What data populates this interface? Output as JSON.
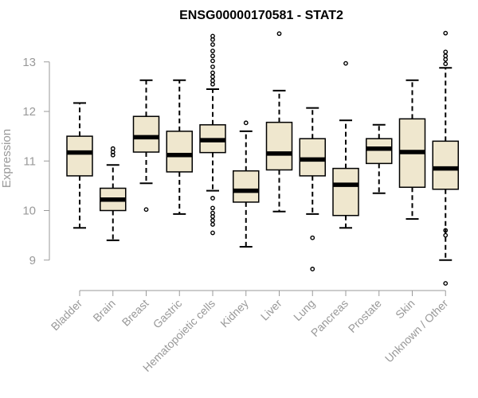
{
  "chart_data": {
    "type": "boxplot",
    "title": "ENSG00000170581 - STAT2",
    "ylabel": "Expression",
    "xlabel": "",
    "ylim": [
      8.45,
      13.6
    ],
    "yticks": [
      9,
      10,
      11,
      12,
      13
    ],
    "grid": false,
    "legend": "none",
    "colors": {
      "box_fill": "#efe7ce",
      "stroke": "#000000",
      "axis": "#9a9a9a",
      "tick_label": "#999999"
    },
    "categories": [
      "Bladder",
      "Brain",
      "Breast",
      "Gastric",
      "Hematopoietic cells",
      "Kidney",
      "Liver",
      "Lung",
      "Pancreas",
      "Prostate",
      "Skin",
      "Unknown / Other"
    ],
    "boxes": [
      {
        "label": "Bladder",
        "whisker_low": 9.65,
        "q1": 10.7,
        "median": 11.17,
        "q3": 11.5,
        "whisker_high": 12.17,
        "outliers": []
      },
      {
        "label": "Brain",
        "whisker_low": 9.4,
        "q1": 10.0,
        "median": 10.22,
        "q3": 10.45,
        "whisker_high": 10.92,
        "outliers": [
          11.12,
          11.18,
          11.25
        ]
      },
      {
        "label": "Breast",
        "whisker_low": 10.55,
        "q1": 11.18,
        "median": 11.48,
        "q3": 11.9,
        "whisker_high": 12.63,
        "outliers": [
          10.02
        ]
      },
      {
        "label": "Gastric",
        "whisker_low": 9.93,
        "q1": 10.78,
        "median": 11.12,
        "q3": 11.6,
        "whisker_high": 12.63,
        "outliers": []
      },
      {
        "label": "Hematopoietic cells",
        "whisker_low": 10.4,
        "q1": 11.17,
        "median": 11.42,
        "q3": 11.73,
        "whisker_high": 12.45,
        "outliers": [
          9.55,
          9.72,
          9.8,
          9.88,
          9.95,
          10.05,
          10.25,
          12.55,
          12.62,
          12.7,
          12.78,
          12.9,
          13.02,
          13.12,
          13.22,
          13.35,
          13.45,
          13.52
        ]
      },
      {
        "label": "Kidney",
        "whisker_low": 9.27,
        "q1": 10.17,
        "median": 10.4,
        "q3": 10.8,
        "whisker_high": 11.6,
        "outliers": [
          11.77
        ]
      },
      {
        "label": "Liver",
        "whisker_low": 9.98,
        "q1": 10.82,
        "median": 11.15,
        "q3": 11.78,
        "whisker_high": 12.42,
        "outliers": [
          13.57
        ]
      },
      {
        "label": "Lung",
        "whisker_low": 9.93,
        "q1": 10.7,
        "median": 11.03,
        "q3": 11.45,
        "whisker_high": 12.07,
        "outliers": [
          8.82,
          9.45
        ]
      },
      {
        "label": "Pancreas",
        "whisker_low": 9.65,
        "q1": 9.9,
        "median": 10.52,
        "q3": 10.85,
        "whisker_high": 11.82,
        "outliers": [
          12.97
        ]
      },
      {
        "label": "Prostate",
        "whisker_low": 10.35,
        "q1": 10.95,
        "median": 11.25,
        "q3": 11.45,
        "whisker_high": 11.73,
        "outliers": []
      },
      {
        "label": "Skin",
        "whisker_low": 9.83,
        "q1": 10.47,
        "median": 11.18,
        "q3": 11.85,
        "whisker_high": 12.63,
        "outliers": []
      },
      {
        "label": "Unknown / Other",
        "whisker_low": 9.0,
        "q1": 10.43,
        "median": 10.85,
        "q3": 11.4,
        "whisker_high": 12.88,
        "outliers": [
          8.53,
          9.5,
          9.6,
          12.96,
          13.05,
          13.12,
          13.2,
          13.58
        ]
      }
    ]
  }
}
